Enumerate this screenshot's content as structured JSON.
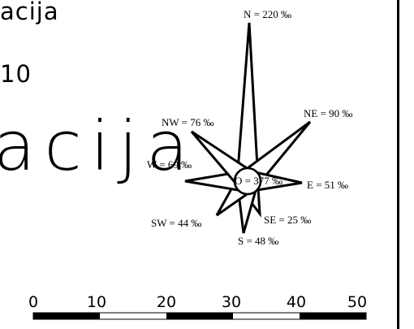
{
  "header": {
    "title_small": "acija",
    "number": "10",
    "title_large": "acija"
  },
  "wind_rose": {
    "rays": [
      {
        "dir": "N",
        "label": "N = 220 ‰",
        "value": 220
      },
      {
        "dir": "NE",
        "label": "NE = 90 ‰",
        "value": 90
      },
      {
        "dir": "E",
        "label": "E = 51 ‰",
        "value": 51
      },
      {
        "dir": "SE",
        "label": "SE = 25 ‰",
        "value": 25
      },
      {
        "dir": "S",
        "label": "S = 48 ‰",
        "value": 48
      },
      {
        "dir": "SW",
        "label": "SW = 44 ‰",
        "value": 44
      },
      {
        "dir": "W",
        "label": "W = 69 ‰",
        "value": 69
      },
      {
        "dir": "NW",
        "label": "NW = 76 ‰",
        "value": 76
      }
    ],
    "calm_label": "O = 377 ‰",
    "calm_value": 377
  },
  "scale_bar": {
    "labels": [
      "0",
      "10",
      "20",
      "30",
      "40",
      "50"
    ]
  }
}
